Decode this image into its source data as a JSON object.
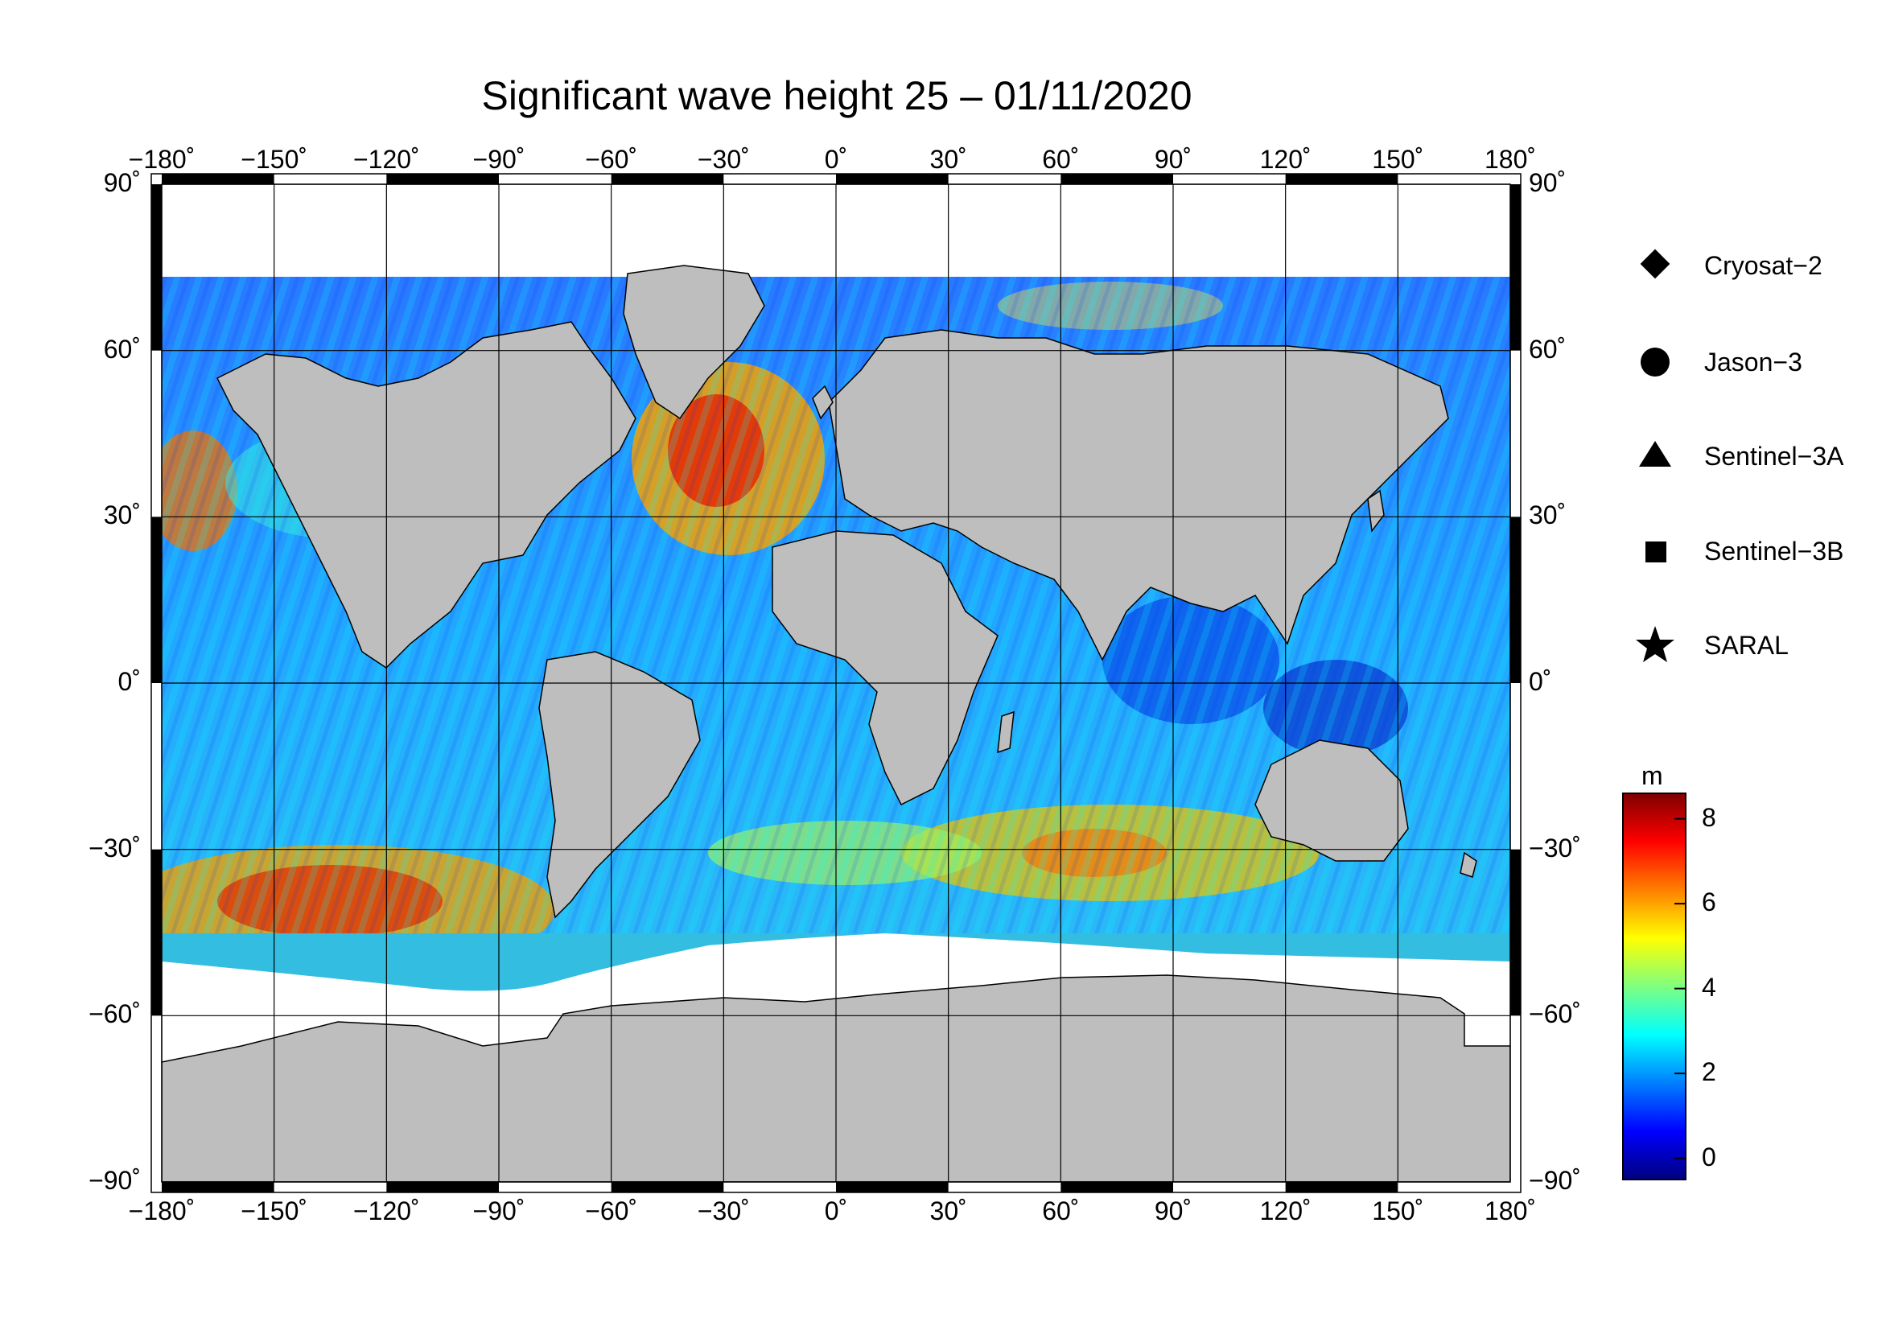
{
  "title": "Significant wave height 25 – 01/11/2020",
  "map": {
    "projection": "equirectangular",
    "lon_range": [
      -180,
      180
    ],
    "lat_range": [
      -90,
      90
    ],
    "gridlines": true,
    "land_color": "#bebebe",
    "ice_color": "#ffffff",
    "frame_color": "#000000"
  },
  "axes": {
    "lon_ticks": [
      "−180˚",
      "−150˚",
      "−120˚",
      "−90˚",
      "−60˚",
      "−30˚",
      "0˚",
      "30˚",
      "60˚",
      "90˚",
      "120˚",
      "150˚",
      "180˚"
    ],
    "lat_ticks": [
      "90˚",
      "60˚",
      "30˚",
      "0˚",
      "−30˚",
      "−60˚",
      "−90˚"
    ]
  },
  "legend": {
    "items": [
      {
        "label": "Cryosat−2",
        "icon": "diamond-icon"
      },
      {
        "label": "Jason−3",
        "icon": "circle-icon"
      },
      {
        "label": "Sentinel−3A",
        "icon": "triangle-icon"
      },
      {
        "label": "Sentinel−3B",
        "icon": "square-icon"
      },
      {
        "label": "SARAL",
        "icon": "star-icon"
      }
    ]
  },
  "colorbar": {
    "unit": "m",
    "min": -0.5,
    "max": 8.6,
    "ticks": [
      "0",
      "2",
      "4",
      "6",
      "8"
    ],
    "tick_values": [
      0,
      2,
      4,
      6,
      8
    ],
    "colors": [
      "#00007f",
      "#0000ff",
      "#007fff",
      "#00ffff",
      "#7fff7f",
      "#ffff00",
      "#ff7f00",
      "#ff0000",
      "#7f0000"
    ]
  }
}
